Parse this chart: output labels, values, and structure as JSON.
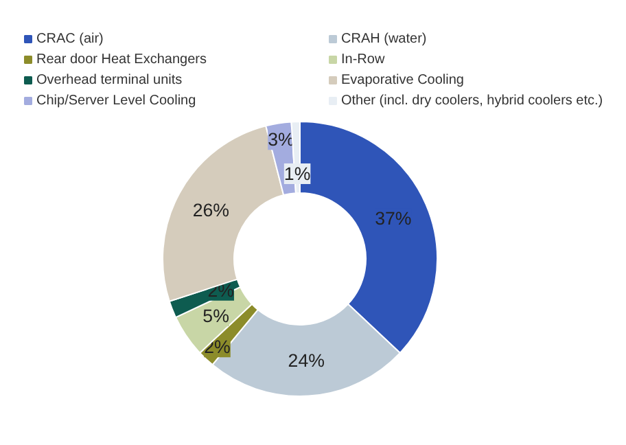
{
  "chart_data": {
    "type": "donut",
    "categories": [
      "CRAC (air)",
      "CRAH (water)",
      "Rear door Heat Exchangers",
      "In-Row",
      "Overhead terminal units",
      "Evaporative Cooling",
      "Chip/Server Level Cooling",
      "Other (incl. dry coolers, hybrid coolers etc.)"
    ],
    "values": [
      37,
      24,
      2,
      5,
      2,
      26,
      3,
      1
    ],
    "colors": [
      "#2f55b8",
      "#bccad6",
      "#8c8c2a",
      "#c8d6a6",
      "#0e5c50",
      "#d5ccbc",
      "#a3acdf",
      "#e8eef4"
    ],
    "value_labels": [
      "37%",
      "24%",
      "2%",
      "5%",
      "2%",
      "26%",
      "3%",
      "1%"
    ],
    "legend": "top"
  }
}
